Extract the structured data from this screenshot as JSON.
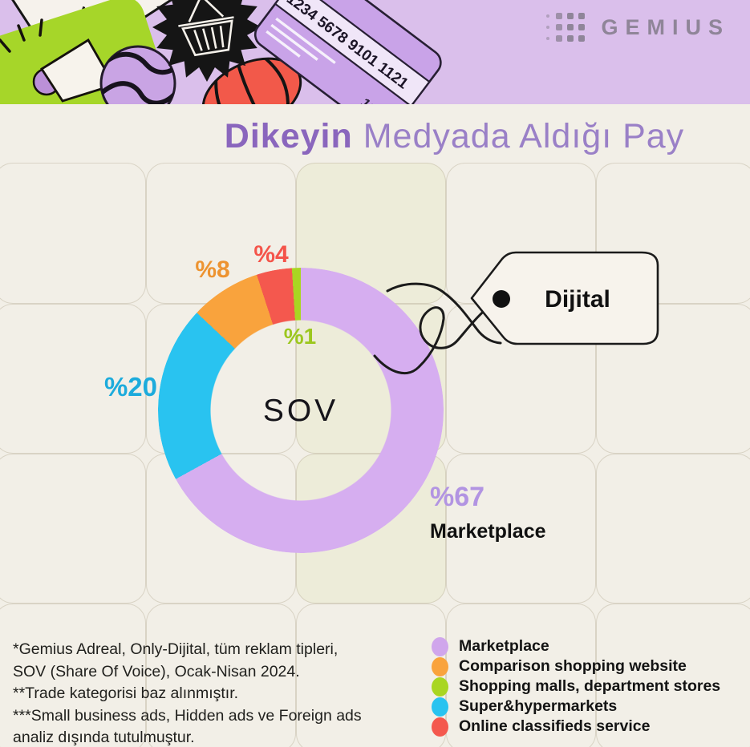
{
  "header": {
    "logo_text": "GEMIUS",
    "card_number": "1234 5678 9101 1121",
    "card_corner_number": "1234"
  },
  "title": {
    "highlight": "Dikeyin",
    "rest": "Medyada Aldığı Pay"
  },
  "chart_data": {
    "type": "pie",
    "variant": "donut",
    "title": "Dikeyin Medyada Aldığı Pay",
    "center_label": "SOV",
    "tag_label": "Dijital",
    "legend_position": "bottom-right",
    "segments": [
      {
        "name": "Marketplace",
        "value": 67,
        "display": "%67",
        "color": "#d6aef0",
        "label_color": "#b294e2"
      },
      {
        "name": "Super&hypermarkets",
        "value": 20,
        "display": "%20",
        "color": "#29c3f0",
        "label_color": "#1cabdc"
      },
      {
        "name": "Comparison shopping website",
        "value": 8,
        "display": "%8",
        "color": "#f9a33d",
        "label_color": "#ed9330"
      },
      {
        "name": "Online classifieds service",
        "value": 4,
        "display": "%4",
        "color": "#f4584e",
        "label_color": "#f4544a"
      },
      {
        "name": "Shopping malls, department stores",
        "value": 1,
        "display": "%1",
        "color": "#a9d622",
        "label_color": "#9cc71e"
      }
    ],
    "legend": [
      {
        "label": "Marketplace",
        "color": "#d0a6ec"
      },
      {
        "label": "Comparison shopping website",
        "color": "#f9a33d"
      },
      {
        "label": "Shopping malls, department stores",
        "color": "#a9d622"
      },
      {
        "label": "Super&hypermarkets",
        "color": "#29c3f0"
      },
      {
        "label": "Online classifieds service",
        "color": "#f4584e"
      }
    ]
  },
  "footnotes": {
    "lines": [
      "*Gemius Adreal, Only-Dijital, tüm reklam tipleri,",
      "SOV (Share Of Voice), Ocak-Nisan 2024.",
      "**Trade kategorisi baz alınmıştır.",
      "***Small business ads, Hidden ads ve Foreign ads",
      "analiz dışında tutulmuştur."
    ]
  }
}
